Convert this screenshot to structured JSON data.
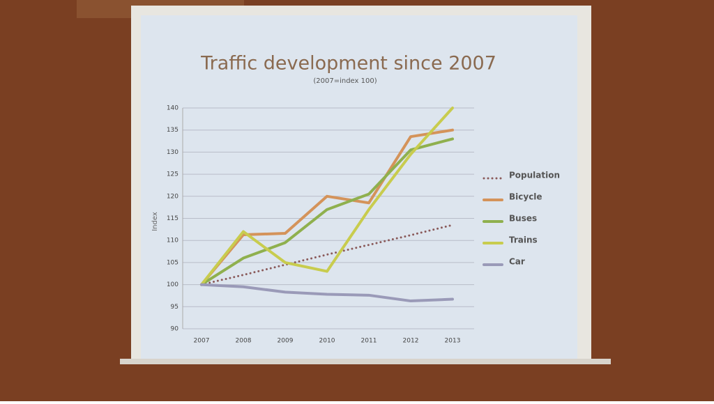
{
  "chart_data": {
    "type": "line",
    "title": "Traffic development since 2007",
    "subtitle": "(2007=index 100)",
    "y_label": "Index",
    "categories": [
      "2007",
      "2008",
      "2009",
      "2010",
      "2011",
      "2012",
      "2013"
    ],
    "series": [
      {
        "name": "Population",
        "color": "#8a5a5a",
        "style": "dotted",
        "values": [
          100,
          102.2,
          104.5,
          106.8,
          109,
          111.2,
          113.5
        ]
      },
      {
        "name": "Bicycle",
        "color": "#d4935a",
        "style": "solid",
        "values": [
          100,
          111.3,
          111.6,
          120,
          118.5,
          133.5,
          135
        ]
      },
      {
        "name": "Buses",
        "color": "#8fb04e",
        "style": "solid",
        "values": [
          100,
          106,
          109.5,
          117,
          120.5,
          130.5,
          133
        ]
      },
      {
        "name": "Trains",
        "color": "#c8cc4e",
        "style": "solid",
        "values": [
          100,
          112,
          105,
          103,
          117,
          129.5,
          140
        ]
      },
      {
        "name": "Car",
        "color": "#9a9ab8",
        "style": "solid",
        "values": [
          100,
          99.5,
          98.3,
          97.8,
          97.6,
          96.3,
          96.7
        ]
      }
    ],
    "ylim": [
      90,
      140
    ],
    "yticks": [
      90,
      95,
      100,
      105,
      110,
      115,
      120,
      125,
      130,
      135,
      140
    ],
    "grid": true,
    "legend": "right"
  }
}
